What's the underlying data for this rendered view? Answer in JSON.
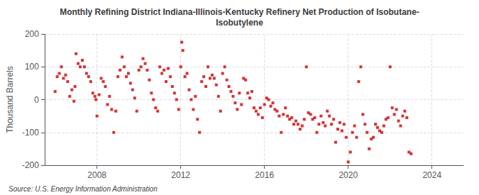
{
  "chart_data": {
    "type": "scatter",
    "title": "Monthly Refining District Indiana-Illinois-Kentucky Refinery Net Production of Isobutane-\nIsobutylene",
    "ylabel": "Thousand Barrels",
    "annotations": [
      "Source: U.S. Energy Information Administration"
    ],
    "color": "#cc0000",
    "marker": "square",
    "grid": true,
    "xlim": [
      2005.5,
      2025.5
    ],
    "xticks": [
      2008,
      2012,
      2016,
      2020,
      2024
    ],
    "ylim": [
      -200,
      200
    ],
    "yticks": [
      -200,
      -100,
      0,
      100,
      200
    ],
    "x": [
      2006.0,
      2006.1,
      2006.2,
      2006.3,
      2006.4,
      2006.5,
      2006.6,
      2006.7,
      2006.8,
      2006.9,
      2006.95,
      2007.0,
      2007.1,
      2007.2,
      2007.3,
      2007.4,
      2007.5,
      2007.6,
      2007.7,
      2007.8,
      2007.9,
      2007.95,
      2008.0,
      2008.1,
      2008.2,
      2008.3,
      2008.4,
      2008.5,
      2008.6,
      2008.7,
      2008.8,
      2008.9,
      2009.0,
      2009.1,
      2009.2,
      2009.3,
      2009.4,
      2009.5,
      2009.6,
      2009.7,
      2009.8,
      2009.9,
      2010.0,
      2010.1,
      2010.2,
      2010.3,
      2010.4,
      2010.5,
      2010.6,
      2010.7,
      2010.8,
      2010.9,
      2011.0,
      2011.1,
      2011.2,
      2011.3,
      2011.4,
      2011.5,
      2011.6,
      2011.7,
      2011.8,
      2011.9,
      2012.0,
      2012.05,
      2012.1,
      2012.2,
      2012.3,
      2012.4,
      2012.5,
      2012.6,
      2012.7,
      2012.8,
      2012.9,
      2013.0,
      2013.1,
      2013.2,
      2013.3,
      2013.4,
      2013.5,
      2013.6,
      2013.7,
      2013.8,
      2013.9,
      2014.0,
      2014.1,
      2014.2,
      2014.3,
      2014.4,
      2014.5,
      2014.6,
      2014.7,
      2014.8,
      2014.9,
      2015.0,
      2015.1,
      2015.2,
      2015.3,
      2015.4,
      2015.5,
      2015.6,
      2015.7,
      2015.8,
      2015.9,
      2016.0,
      2016.1,
      2016.2,
      2016.3,
      2016.4,
      2016.5,
      2016.6,
      2016.7,
      2016.8,
      2016.9,
      2017.0,
      2017.1,
      2017.2,
      2017.3,
      2017.4,
      2017.5,
      2017.6,
      2017.7,
      2017.8,
      2017.9,
      2018.0,
      2018.1,
      2018.2,
      2018.3,
      2018.4,
      2018.5,
      2018.6,
      2018.7,
      2018.8,
      2018.9,
      2019.0,
      2019.1,
      2019.2,
      2019.3,
      2019.4,
      2019.5,
      2019.6,
      2019.7,
      2019.8,
      2019.9,
      2020.0,
      2020.1,
      2020.2,
      2020.3,
      2020.4,
      2020.5,
      2020.6,
      2020.7,
      2020.8,
      2020.9,
      2021.0,
      2021.1,
      2021.2,
      2021.3,
      2021.4,
      2021.5,
      2021.6,
      2021.7,
      2021.8,
      2021.9,
      2022.0,
      2022.1,
      2022.2,
      2022.3,
      2022.4,
      2022.5,
      2022.6,
      2022.7,
      2022.8,
      2022.9,
      2023.0
    ],
    "values": [
      25,
      70,
      80,
      100,
      65,
      75,
      55,
      10,
      30,
      -5,
      40,
      140,
      110,
      100,
      120,
      100,
      80,
      70,
      55,
      20,
      10,
      0,
      -50,
      15,
      65,
      55,
      40,
      -15,
      10,
      -30,
      -100,
      -35,
      70,
      90,
      130,
      100,
      70,
      80,
      50,
      30,
      5,
      -35,
      90,
      100,
      125,
      110,
      90,
      60,
      20,
      0,
      -25,
      -35,
      100,
      80,
      90,
      55,
      95,
      70,
      40,
      20,
      0,
      -30,
      100,
      175,
      150,
      70,
      80,
      30,
      0,
      -30,
      10,
      -60,
      -100,
      55,
      70,
      40,
      100,
      65,
      75,
      65,
      45,
      10,
      -35,
      80,
      100,
      60,
      40,
      25,
      10,
      -10,
      -30,
      20,
      -15,
      65,
      60,
      20,
      5,
      25,
      -25,
      -35,
      -45,
      -25,
      -55,
      -15,
      5,
      0,
      -20,
      -10,
      -30,
      -35,
      -50,
      -100,
      -45,
      -25,
      -50,
      -60,
      -55,
      -75,
      -65,
      -75,
      -90,
      -80,
      -60,
      100,
      -40,
      -45,
      -60,
      -55,
      -100,
      -75,
      -50,
      -70,
      -80,
      -35,
      -50,
      -75,
      -60,
      -130,
      -90,
      -70,
      -95,
      -75,
      -115,
      -190,
      -160,
      -100,
      -80,
      -115,
      55,
      100,
      -45,
      -75,
      -100,
      -150,
      -120,
      -115,
      -75,
      -85,
      -95,
      -100,
      -80,
      -60,
      -55,
      100,
      -25,
      -45,
      -30,
      -65,
      -80,
      -50,
      -35,
      -55,
      -160,
      -165
    ]
  }
}
